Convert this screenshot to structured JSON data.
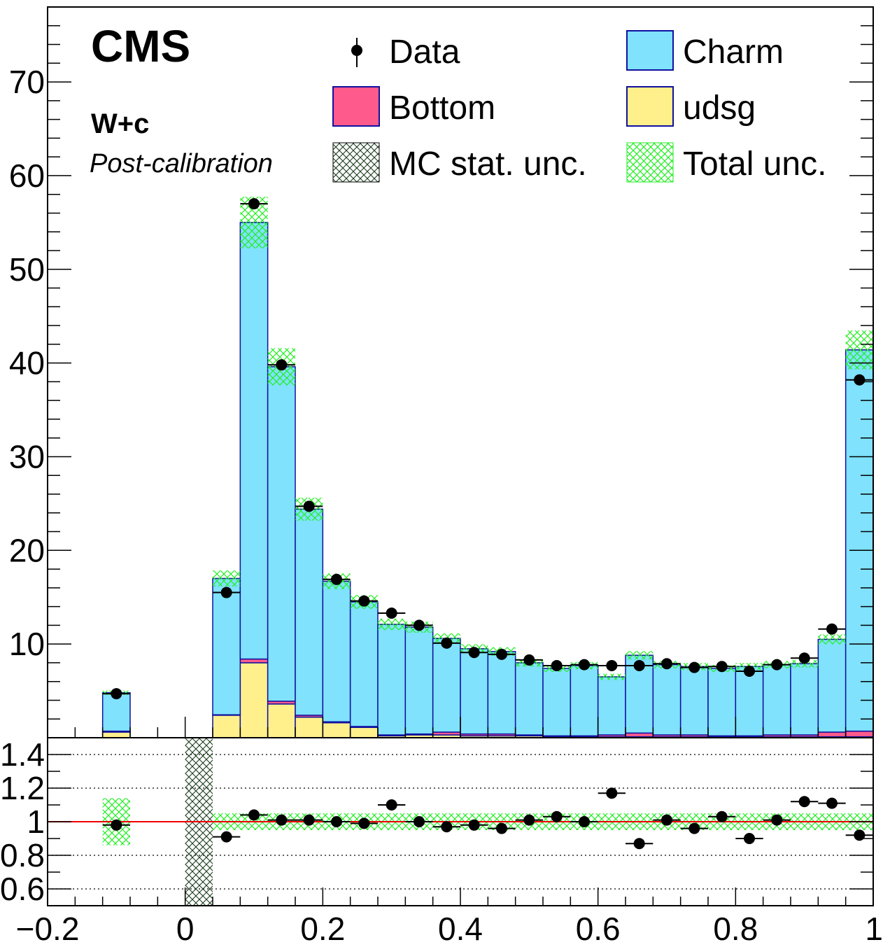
{
  "chart_data": {
    "type": "bar",
    "title": "",
    "x": {
      "range": [
        -0.2,
        1.0
      ],
      "ticks": [
        -0.2,
        0,
        0.2,
        0.4,
        0.6,
        0.8,
        1
      ],
      "tick_labels": [
        "−0.2",
        "0",
        "0.2",
        "0.4",
        "0.6",
        "0.8",
        "1"
      ],
      "xlabel": ""
    },
    "bin_edges": [
      -0.12,
      -0.08,
      -0.04,
      0.0,
      0.04,
      0.08,
      0.12,
      0.16,
      0.2,
      0.24,
      0.28,
      0.32,
      0.36,
      0.4,
      0.44,
      0.48,
      0.52,
      0.56,
      0.6,
      0.64,
      0.68,
      0.72,
      0.76,
      0.8,
      0.84,
      0.88,
      0.92,
      0.96,
      1.0
    ],
    "top_panel": {
      "ylabel": "",
      "ylim": [
        0,
        78
      ],
      "yticks": [
        10,
        20,
        30,
        40,
        50,
        60,
        70
      ],
      "ytick_labels": [
        "10",
        "20",
        "30",
        "40",
        "50",
        "60",
        "70"
      ],
      "stack_order": [
        "udsg",
        "Bottom",
        "Charm"
      ],
      "series": [
        {
          "name": "udsg",
          "color": "#fff08c",
          "values": [
            0.6,
            0,
            0,
            0,
            2.4,
            8.0,
            3.6,
            2.2,
            1.6,
            1.1,
            0.2,
            0.3,
            0.3,
            0.2,
            0.2,
            0.2,
            0.1,
            0.1,
            0.1,
            0.1,
            0.1,
            0.1,
            0.1,
            0.1,
            0.1,
            0.1,
            0.1,
            0.1
          ]
        },
        {
          "name": "Bottom",
          "color": "#ff5a8c",
          "values": [
            0.1,
            0,
            0,
            0,
            0.05,
            0.4,
            0.3,
            0.2,
            0.1,
            0.1,
            0.1,
            0.1,
            0.3,
            0.2,
            0.2,
            0.1,
            0.1,
            0.1,
            0.2,
            0.4,
            0.2,
            0.2,
            0.1,
            0.1,
            0.2,
            0.2,
            0.5,
            0.6
          ]
        },
        {
          "name": "Charm",
          "color": "#80e2fc",
          "values": [
            4.1,
            0,
            0,
            0,
            14.55,
            46.6,
            35.7,
            22.0,
            15.0,
            13.3,
            11.8,
            11.4,
            10.0,
            9.1,
            8.8,
            7.7,
            7.2,
            7.5,
            6.2,
            8.3,
            7.5,
            7.3,
            7.2,
            7.4,
            7.5,
            7.6,
            9.9,
            40.7
          ]
        }
      ],
      "data": {
        "name": "Data",
        "x": [
          -0.1,
          0.06,
          0.1,
          0.14,
          0.18,
          0.22,
          0.26,
          0.3,
          0.34,
          0.38,
          0.42,
          0.46,
          0.5,
          0.54,
          0.58,
          0.62,
          0.66,
          0.7,
          0.74,
          0.78,
          0.82,
          0.86,
          0.9,
          0.94,
          0.98
        ],
        "y": [
          4.7,
          15.5,
          57.0,
          39.8,
          24.7,
          16.9,
          14.6,
          13.3,
          12.0,
          10.1,
          9.1,
          8.9,
          8.3,
          7.7,
          7.8,
          7.7,
          7.7,
          7.9,
          7.5,
          7.6,
          7.1,
          7.8,
          8.5,
          11.6,
          38.2
        ]
      },
      "total_unc_frac": 0.05
    },
    "ratio_panel": {
      "ylabel": "",
      "ylim": [
        0.5,
        1.5
      ],
      "yticks": [
        0.6,
        0.8,
        1.0,
        1.2,
        1.4
      ],
      "ytick_labels": [
        "0.6",
        "0.8",
        "1",
        "1.2",
        "1.4"
      ],
      "gridlines": [
        0.6,
        0.8,
        1.2,
        1.4
      ],
      "reference_line": 1.0,
      "data": {
        "x": [
          -0.1,
          0.06,
          0.1,
          0.14,
          0.18,
          0.22,
          0.26,
          0.3,
          0.34,
          0.38,
          0.42,
          0.46,
          0.5,
          0.54,
          0.58,
          0.62,
          0.66,
          0.7,
          0.74,
          0.78,
          0.82,
          0.86,
          0.9,
          0.94,
          0.98
        ],
        "y": [
          0.98,
          0.91,
          1.04,
          1.01,
          1.01,
          1.0,
          0.99,
          1.1,
          1.0,
          0.97,
          0.98,
          0.96,
          1.01,
          1.03,
          1.0,
          1.17,
          0.87,
          1.01,
          0.96,
          1.03,
          0.9,
          1.01,
          1.12,
          1.11,
          0.92
        ]
      },
      "total_unc_band": {
        "bins": [
          [
            -0.12,
            -0.08
          ],
          [
            0.04,
            1.0
          ]
        ],
        "half_widths": [
          0.14,
          0.05
        ]
      },
      "mc_stat_band": {
        "bins": [
          [
            0.0,
            0.04
          ]
        ],
        "range": [
          0.5,
          1.5
        ]
      }
    },
    "legend": {
      "placement": "top",
      "entries": [
        {
          "label": "Data",
          "kind": "marker"
        },
        {
          "label": "Charm",
          "kind": "fill",
          "color": "#80e2fc"
        },
        {
          "label": "Bottom",
          "kind": "fill",
          "color": "#ff5a8c"
        },
        {
          "label": "udsg",
          "kind": "fill",
          "color": "#fff08c"
        },
        {
          "label": "MC stat. unc.",
          "kind": "hatch",
          "color": "#000000"
        },
        {
          "label": "Total unc.",
          "kind": "hatch",
          "color": "#22ee22"
        }
      ]
    },
    "annotations": {
      "experiment": "CMS",
      "process": "W+c",
      "stage": "Post-calibration"
    }
  },
  "colors": {
    "outline": "#1010a0",
    "data_marker": "#000000",
    "reference_line": "#ee0000",
    "total_unc_hatch": "#22ee22",
    "mc_stat_hatch": "#000000"
  }
}
